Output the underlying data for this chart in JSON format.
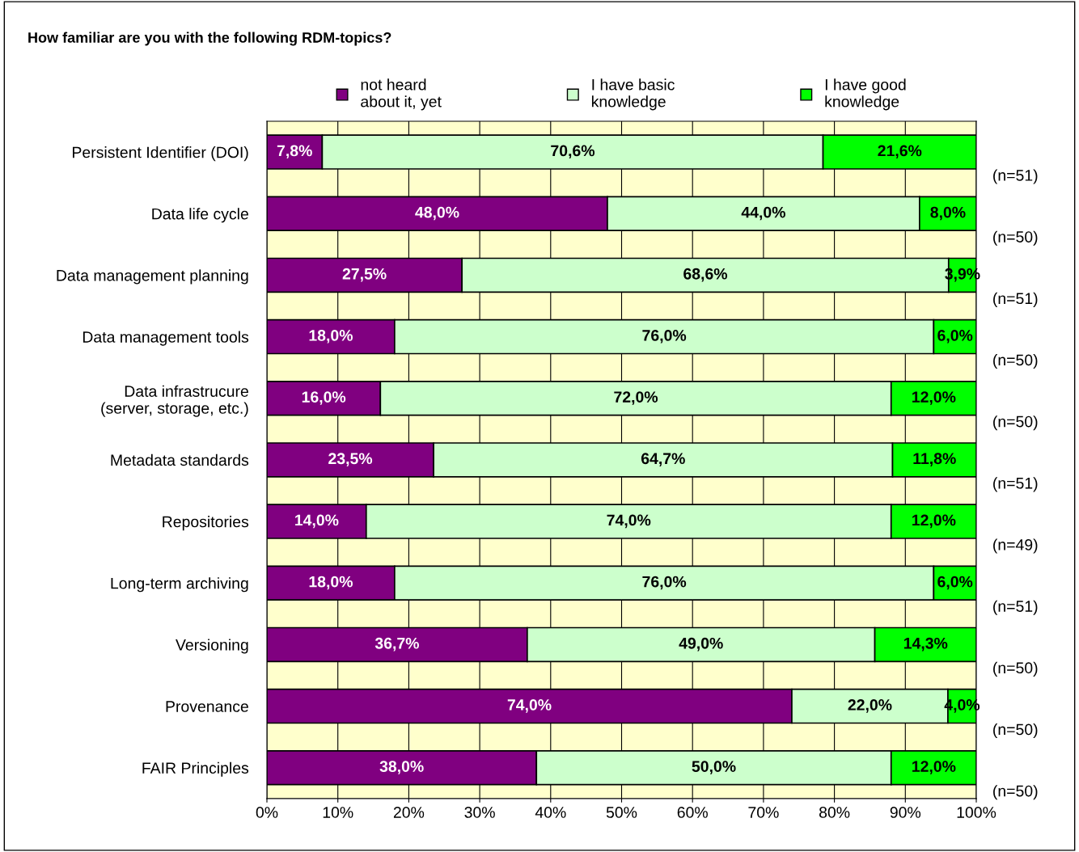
{
  "chart_data": {
    "type": "bar",
    "orientation": "horizontal",
    "stacked": true,
    "title": "How familiar are you with the following RDM-topics?",
    "categories": [
      "Persistent Identifier (DOI)",
      "Data life cycle",
      "Data management planning",
      "Data management tools",
      "Data infrastrucure\n(server, storage, etc.)",
      "Metadata standards",
      "Repositories",
      "Long-term archiving",
      "Versioning",
      "Provenance",
      "FAIR Principles"
    ],
    "series": [
      {
        "name": "not heard\nabout it, yet",
        "color": "#800080",
        "values": [
          7.8,
          48.0,
          27.5,
          18.0,
          16.0,
          23.5,
          14.0,
          18.0,
          36.7,
          74.0,
          38.0
        ],
        "value_labels": [
          "7,8%",
          "48,0%",
          "27,5%",
          "18,0%",
          "16,0%",
          "23,5%",
          "14,0%",
          "18,0%",
          "36,7%",
          "74,0%",
          "38,0%"
        ]
      },
      {
        "name": "I have basic\nknowledge",
        "color": "#ccffcc",
        "values": [
          70.6,
          44.0,
          68.6,
          76.0,
          72.0,
          64.7,
          74.0,
          76.0,
          49.0,
          22.0,
          50.0
        ],
        "value_labels": [
          "70,6%",
          "44,0%",
          "68,6%",
          "76,0%",
          "72,0%",
          "64,7%",
          "74,0%",
          "76,0%",
          "49,0%",
          "22,0%",
          "50,0%"
        ]
      },
      {
        "name": "I have good\nknowledge",
        "color": "#00ff00",
        "values": [
          21.6,
          8.0,
          3.9,
          6.0,
          12.0,
          11.8,
          12.0,
          6.0,
          14.3,
          4.0,
          12.0
        ],
        "value_labels": [
          "21,6%",
          "8,0%",
          "3,9%",
          "6,0%",
          "12,0%",
          "11,8%",
          "12,0%",
          "6,0%",
          "14,3%",
          "4,0%",
          "12,0%"
        ]
      }
    ],
    "xlim": [
      0,
      100
    ],
    "xticks": [
      {
        "value": 0,
        "label": "0%"
      },
      {
        "value": 10,
        "label": "10%"
      },
      {
        "value": 20,
        "label": "20%"
      },
      {
        "value": 30,
        "label": "30%"
      },
      {
        "value": 40,
        "label": "40%"
      },
      {
        "value": 50,
        "label": "50%"
      },
      {
        "value": 60,
        "label": "60%"
      },
      {
        "value": 70,
        "label": "70%"
      },
      {
        "value": 80,
        "label": "80%"
      },
      {
        "value": 90,
        "label": "90%"
      },
      {
        "value": 100,
        "label": "100%"
      }
    ],
    "grid": "x",
    "legend": "top",
    "annotations": [
      "(n=51)",
      "(n=50)",
      "(n=51)",
      "(n=50)",
      "(n=50)",
      "(n=51)",
      "(n=49)",
      "(n=51)",
      "(n=50)",
      "(n=50)",
      "(n=50)"
    ]
  }
}
